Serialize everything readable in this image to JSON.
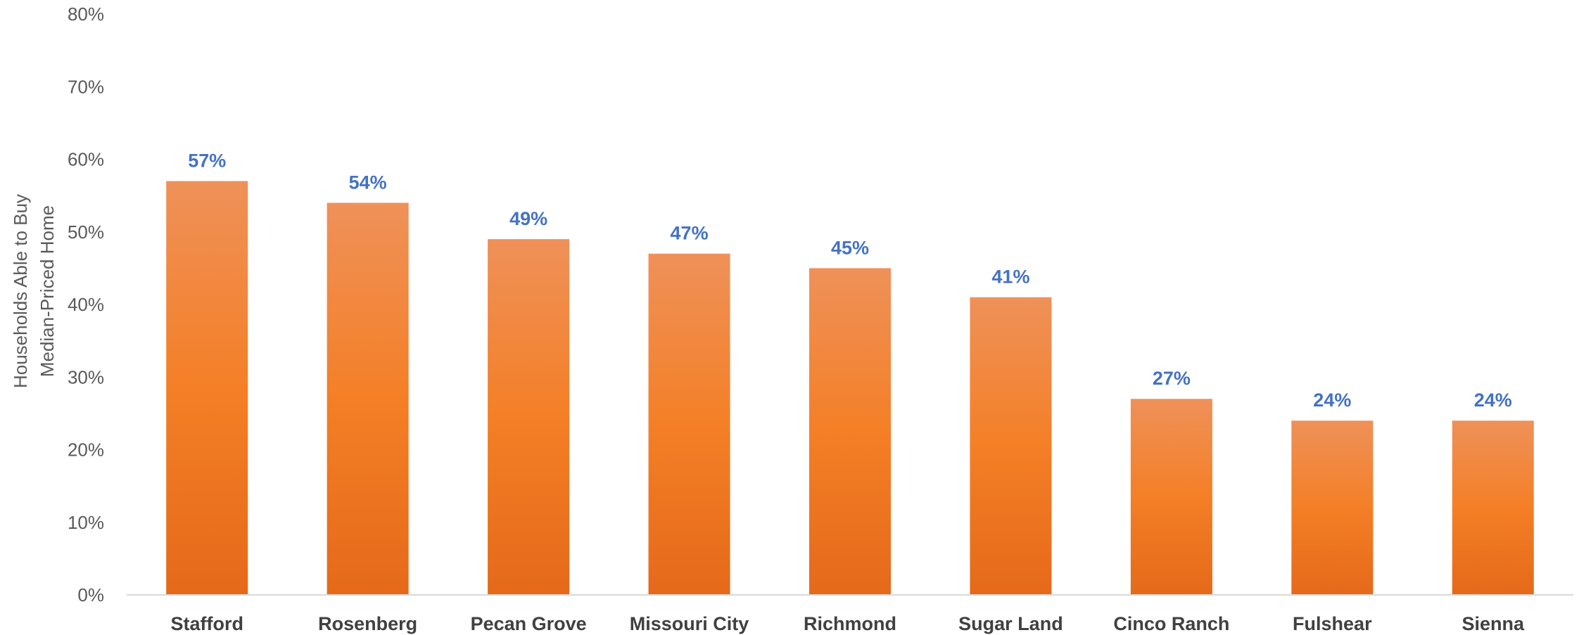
{
  "chart_data": {
    "type": "bar",
    "title": "",
    "xlabel": "",
    "ylabel_lines": [
      "Households Able to Buy",
      "Median-Priced Home"
    ],
    "categories": [
      "Stafford",
      "Rosenberg",
      "Pecan Grove",
      "Missouri City",
      "Richmond",
      "Sugar Land",
      "Cinco Ranch",
      "Fulshear",
      "Sienna"
    ],
    "values": [
      57,
      54,
      49,
      47,
      45,
      41,
      27,
      24,
      24
    ],
    "data_labels": [
      "57%",
      "54%",
      "49%",
      "47%",
      "45%",
      "41%",
      "27%",
      "24%",
      "24%"
    ],
    "ylim": [
      0,
      80
    ],
    "y_ticks": [
      0,
      10,
      20,
      30,
      40,
      50,
      60,
      70,
      80
    ],
    "y_tick_labels": [
      "0%",
      "10%",
      "20%",
      "30%",
      "40%",
      "50%",
      "60%",
      "70%",
      "80%"
    ],
    "grid": false,
    "legend": "none",
    "colors": {
      "bar_top": "#EF9159",
      "bar_mid": "#F47F26",
      "bar_bottom": "#E5691A",
      "data_label": "#4472C4",
      "axis_line": "#D9D9D9"
    }
  }
}
